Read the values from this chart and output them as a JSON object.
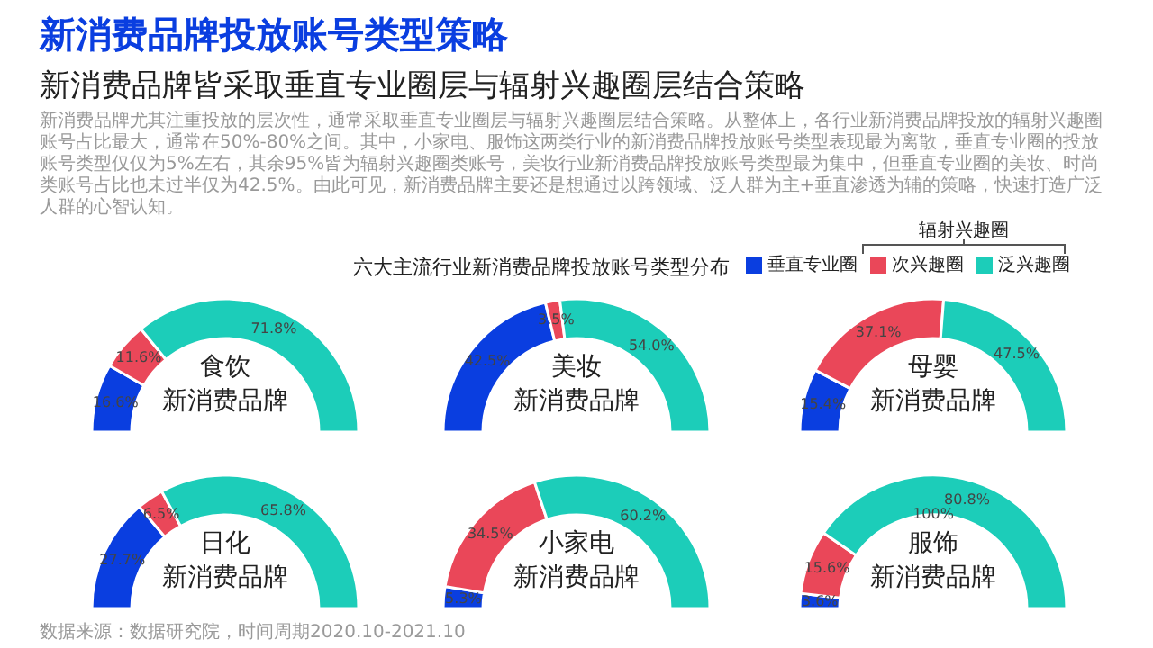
{
  "chart_data": [
    {
      "type": "other",
      "title": "新消费品牌投放账号类型策略",
      "subtitle": "新消费品牌皆采取垂直专业圈层与辐射兴趣圈层结合策略",
      "annotations": [
        "新消费品牌尤其注重投放的层次性，通常采取垂直专业圈层与辐射兴趣圈层结合策略。从整体上，各行业新消费品牌投放的辐射兴趣圈账号占比最大，通常在50%-80%之间。其中，小家电、服饰这两类行业的新消费品牌投放账号类型表现最为离散，垂直专业圈的投放账号类型仅仅为5%左右，其余95%皆为辐射兴趣圈类账号，美妆行业新消费品牌投放账号类型最为集中，但垂直专业圈的美妆、时尚类账号占比也未过半仅为42.5%。由此可见，新消费品牌主要还是想通过以跨领域、泛人群为主+垂直渗透为辅的策略，快速打造广泛人群的心智认知。",
        "六大主流行业新消费品牌投放账号类型分布",
        "辐射兴趣圈",
        "数据来源：数据研究院，时间周期2020.10-2021.10"
      ]
    },
    {
      "type": "donut",
      "title": "食饮",
      "subtitle": "新消费品牌",
      "categories": [
        "垂直专业圈",
        "次兴趣圈",
        "泛兴趣圈"
      ],
      "values": [
        16.6,
        11.6,
        71.8
      ],
      "value_labels": [
        "16.6%",
        "11.6%",
        "71.8%"
      ],
      "colors": [
        "#0a3ee0",
        "#ea4759",
        "#1ccdb9"
      ],
      "legend": "top right"
    },
    {
      "type": "donut",
      "title": "美妆",
      "subtitle": "新消费品牌",
      "values": [
        42.5,
        3.5,
        54.0
      ],
      "value_labels": [
        "42.5%",
        "3.5%",
        "54.0%"
      ],
      "colors": [
        "#0a3ee0",
        "#ea4759",
        "#1ccdb9"
      ]
    },
    {
      "type": "donut",
      "title": "母婴",
      "subtitle": "新消费品牌",
      "values": [
        15.4,
        37.1,
        47.5
      ],
      "value_labels": [
        "15.4%",
        "37.1%",
        "47.5%"
      ],
      "colors": [
        "#0a3ee0",
        "#ea4759",
        "#1ccdb9"
      ]
    },
    {
      "type": "donut",
      "title": "日化",
      "subtitle": "新消费品牌",
      "values": [
        27.7,
        6.5,
        65.8
      ],
      "value_labels": [
        "27.7%",
        "6.5%",
        "65.8%"
      ],
      "colors": [
        "#0a3ee0",
        "#ea4759",
        "#1ccdb9"
      ]
    },
    {
      "type": "donut",
      "title": "小家电",
      "subtitle": "新消费品牌",
      "values": [
        5.3,
        34.5,
        60.2
      ],
      "value_labels": [
        "5.3%",
        "34.5%",
        "60.2%"
      ],
      "colors": [
        "#0a3ee0",
        "#ea4759",
        "#1ccdb9"
      ]
    },
    {
      "type": "donut",
      "title": "服饰",
      "subtitle": "新消费品牌",
      "values": [
        3.6,
        15.6,
        80.8
      ],
      "value_labels": [
        "3.6%",
        "15.6%",
        "80.8%"
      ],
      "colors": [
        "#0a3ee0",
        "#ea4759",
        "#1ccdb9"
      ],
      "annotations": [
        "100%"
      ]
    }
  ]
}
